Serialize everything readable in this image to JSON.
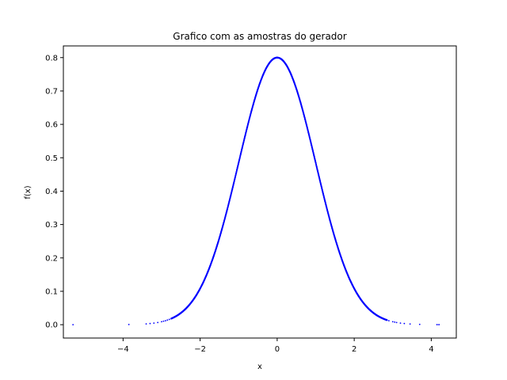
{
  "chart_data": {
    "type": "scatter",
    "title": "Grafico com as amostras do gerador",
    "xlabel": "x",
    "ylabel": "f(x)",
    "xlim": [
      -5.55,
      4.65
    ],
    "ylim": [
      -0.04,
      0.835
    ],
    "x_ticks": [
      -4,
      -2,
      0,
      2,
      4
    ],
    "x_tick_labels": [
      "−4",
      "−2",
      "0",
      "2",
      "4"
    ],
    "y_ticks": [
      0.0,
      0.1,
      0.2,
      0.3,
      0.4,
      0.5,
      0.6,
      0.7,
      0.8
    ],
    "y_tick_labels": [
      "0.0",
      "0.1",
      "0.2",
      "0.3",
      "0.4",
      "0.5",
      "0.6",
      "0.7",
      "0.8"
    ],
    "grid": false,
    "legend": "none",
    "series": [
      {
        "color": "#0000ff",
        "curve": "f(x) = 0.8 · exp(−x² / 2)",
        "dense_x_range": [
          -2.75,
          2.85
        ],
        "sparse_x": [
          -5.3,
          -3.85,
          -3.4,
          -3.3,
          -3.2,
          -3.1,
          -3.0,
          -2.95,
          -2.9,
          -2.85,
          -2.8,
          2.9,
          3.0,
          3.05,
          3.1,
          3.2,
          3.3,
          3.45,
          3.7,
          4.15,
          4.2
        ]
      }
    ]
  }
}
